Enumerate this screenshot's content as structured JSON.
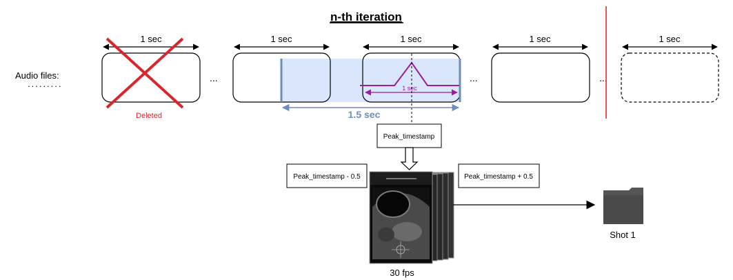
{
  "title": "n-th iteration",
  "row_label": "Audio files:",
  "segment_duration_label": "1 sec",
  "ellipsis": "...",
  "deleted_label": "Deleted",
  "window_label": "1.5 sec",
  "peak_width_label": "1 sec",
  "peak_timestamp_label": "Peak_timestamp",
  "peak_minus_label": "Peak_timestamp - 0.5",
  "peak_plus_label": "Peak_timestamp + 0.5",
  "frames_caption": "30 fps",
  "output_label": "Shot 1",
  "colors": {
    "deleted": "#d9262c",
    "window_fill": "#dae6fb",
    "window_edge": "#6c8ebf",
    "peak": "#9c1c9c",
    "separator": "#e01a1a",
    "folder": "#555555"
  },
  "icons": [
    "cross-icon",
    "folder-icon",
    "arrow-down-icon",
    "ultrasound-frame-stack"
  ]
}
